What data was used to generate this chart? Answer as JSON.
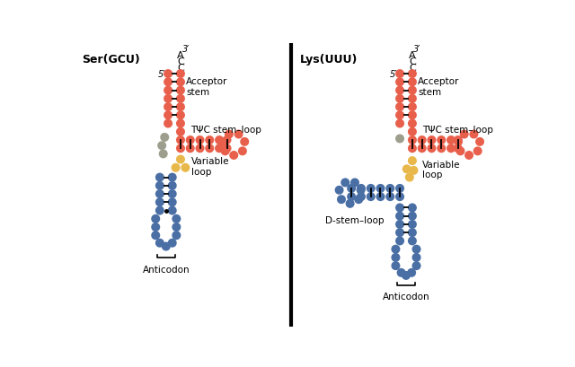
{
  "colors": {
    "red": "#E8604C",
    "blue": "#4A6FA5",
    "gray": "#9E9E8E",
    "yellow": "#E8B84B",
    "black": "#222222",
    "bg": "#FFFFFF"
  },
  "left_title": "Ser(GCU)",
  "right_title": "Lys(UUU)",
  "label_acceptor": "Acceptor\nstem",
  "label_tpsi": "TΨC stem–loop",
  "label_variable": "Variable\nloop",
  "label_dstem": "D-stem–loop",
  "label_anticodon": "Anticodon",
  "label_5prime": "5′",
  "label_3prime": "3′"
}
